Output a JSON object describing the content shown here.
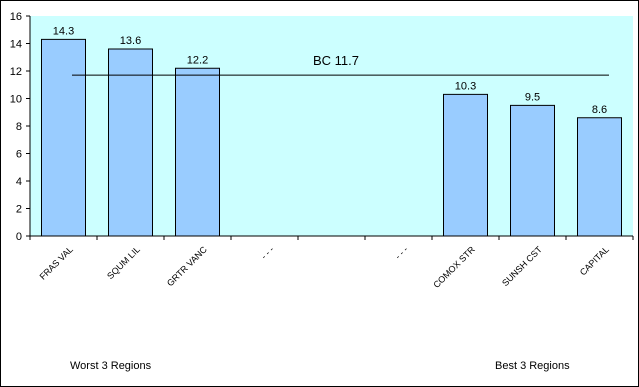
{
  "chart_data": {
    "type": "bar",
    "categories": [
      "FRAS VAL",
      "SQUM LIL",
      "GRTR VANC",
      "- - -",
      "",
      "- - -",
      "COMOX STR",
      "SUNSH CST",
      "CAPITAL"
    ],
    "values": [
      14.3,
      13.6,
      12.2,
      null,
      null,
      null,
      10.3,
      9.5,
      8.6
    ],
    "data_labels": [
      "14.3",
      "13.6",
      "12.2",
      "",
      "",
      "",
      "10.3",
      "9.5",
      "8.6"
    ],
    "ylim": [
      0,
      16
    ],
    "yticks": [
      0,
      2,
      4,
      6,
      8,
      10,
      12,
      14,
      16
    ],
    "ytick_labels": [
      "0",
      "2",
      "4",
      "6",
      "8",
      "10",
      "12",
      "14",
      "16"
    ],
    "reference_line": {
      "label": "BC 11.7",
      "value": 11.7
    },
    "plot_background": "#ccffff",
    "bar_color": "#99ccff",
    "bar_edge_color": "#000000",
    "grid": false,
    "legend": "none"
  },
  "captions": {
    "worst": "Worst 3 Regions",
    "best": "Best 3 Regions"
  }
}
